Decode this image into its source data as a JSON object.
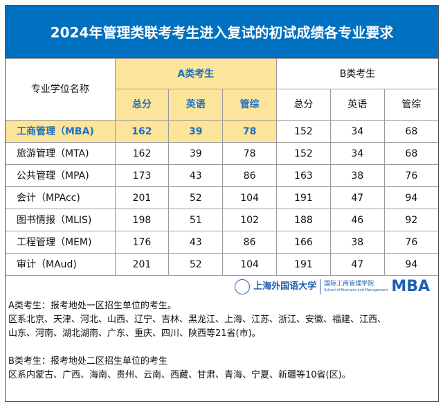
{
  "title": "2024年管理类联考考生进入复试的初试成绩各专业要求",
  "header": {
    "major": "专业学位名称",
    "groupA": "A类考生",
    "groupB": "B类考生",
    "cols": [
      "总分",
      "英语",
      "管综",
      "总分",
      "英语",
      "管综"
    ]
  },
  "rows": [
    {
      "name": "工商管理（MBA)",
      "v": [
        "162",
        "39",
        "78",
        "152",
        "34",
        "68"
      ]
    },
    {
      "name": "旅游管理（MTA)",
      "v": [
        "162",
        "39",
        "78",
        "152",
        "34",
        "68"
      ]
    },
    {
      "name": "公共管理（MPA)",
      "v": [
        "173",
        "43",
        "86",
        "163",
        "38",
        "76"
      ]
    },
    {
      "name": "会计（MPAcc)",
      "v": [
        "201",
        "52",
        "104",
        "191",
        "47",
        "94"
      ]
    },
    {
      "name": "图书情报（MLIS)",
      "v": [
        "198",
        "51",
        "102",
        "188",
        "46",
        "92"
      ]
    },
    {
      "name": "工程管理（MEM)",
      "v": [
        "176",
        "43",
        "86",
        "166",
        "38",
        "76"
      ]
    },
    {
      "name": "审计（MAud)",
      "v": [
        "201",
        "52",
        "104",
        "191",
        "47",
        "94"
      ]
    }
  ],
  "logo": {
    "university": "上海外国语大学",
    "university_en": "SHANGHAI INTERNATIONAL STUDIES UNIVERSITY",
    "school": "国际工商管理学院",
    "school_en": "School of Business and Management",
    "mba": "MBA"
  },
  "notes": [
    "A类考生：报考地处一区招生单位的考生。",
    "区系北京、天津、河北、山西、辽宁、吉林、黑龙江、上海、江苏、浙江、安徽、福建、江西、",
    "山东、河南、湖北湖南、广东、重庆、四川、陕西等21省(市)。",
    "",
    "B类考生：报考地处二区招生单位的考生",
    "区系内蒙古、广西、海南、贵州、云南、西藏、甘肃、青海、宁夏、新疆等10省(区)。"
  ]
}
